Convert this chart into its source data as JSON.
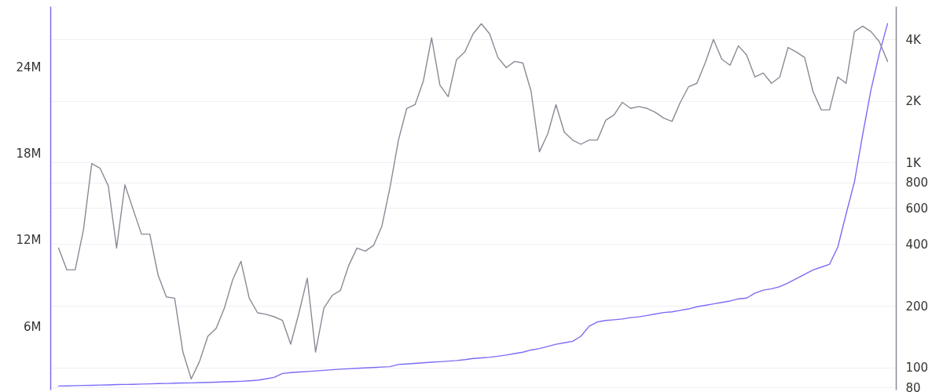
{
  "chart_data": {
    "type": "line",
    "categories": [
      null,
      null,
      null,
      null,
      null,
      null,
      null,
      null,
      null,
      null,
      null,
      null,
      null,
      null,
      null,
      null,
      null,
      null,
      null,
      null,
      null,
      null,
      null,
      null,
      null,
      null,
      null,
      null,
      null,
      null,
      null,
      null,
      null,
      null,
      null,
      null,
      null,
      null,
      null,
      null,
      null,
      null,
      null,
      null,
      null,
      null,
      null,
      null,
      null,
      null,
      null,
      null,
      null,
      null,
      null,
      null,
      null,
      null,
      null,
      null,
      null,
      null,
      null,
      null,
      null,
      null,
      null,
      null,
      null,
      null,
      null,
      null,
      null,
      null,
      null,
      null,
      null,
      null,
      null,
      null,
      null,
      null,
      null,
      null,
      null,
      null,
      null,
      null,
      null,
      null,
      null,
      null,
      null,
      null,
      null,
      null,
      null,
      null,
      null,
      null,
      null
    ],
    "series": [
      {
        "color": "#7b6cf6",
        "axis": "y",
        "values": [
          1.85,
          1.86,
          1.88,
          1.89,
          1.9,
          1.92,
          1.93,
          1.95,
          1.96,
          1.97,
          1.99,
          2.0,
          2.02,
          2.03,
          2.05,
          2.06,
          2.07,
          2.09,
          2.1,
          2.12,
          2.14,
          2.16,
          2.18,
          2.21,
          2.25,
          2.35,
          2.45,
          2.72,
          2.78,
          2.82,
          2.86,
          2.9,
          2.94,
          2.98,
          3.02,
          3.05,
          3.08,
          3.11,
          3.14,
          3.17,
          3.2,
          3.35,
          3.38,
          3.42,
          3.46,
          3.5,
          3.54,
          3.58,
          3.62,
          3.68,
          3.76,
          3.8,
          3.85,
          3.92,
          4.0,
          4.1,
          4.2,
          4.35,
          4.45,
          4.6,
          4.75,
          4.85,
          4.95,
          5.3,
          6.0,
          6.3,
          6.4,
          6.45,
          6.5,
          6.6,
          6.65,
          6.75,
          6.85,
          6.95,
          7.0,
          7.1,
          7.2,
          7.35,
          7.45,
          7.55,
          7.65,
          7.75,
          7.9,
          7.95,
          8.3,
          8.5,
          8.6,
          8.75,
          9.0,
          9.3,
          9.6,
          9.9,
          10.1,
          10.3,
          11.5,
          13.8,
          16.0,
          19.3,
          22.4,
          24.9,
          27.0
        ]
      },
      {
        "color": "#8a8a96",
        "axis": "y2",
        "values": [
          383,
          300,
          300,
          470,
          990,
          940,
          770,
          383,
          780,
          590,
          448,
          448,
          283,
          221,
          218,
          119,
          88,
          107,
          142,
          155,
          195,
          268,
          330,
          218,
          185,
          182,
          177,
          170,
          130,
          185,
          273,
          119,
          195,
          225,
          238,
          315,
          383,
          370,
          395,
          490,
          765,
          1290,
          1840,
          1920,
          2500,
          4070,
          2390,
          2100,
          3180,
          3470,
          4250,
          4770,
          4250,
          3260,
          2910,
          3120,
          3070,
          2230,
          1130,
          1380,
          1920,
          1410,
          1290,
          1230,
          1290,
          1290,
          1610,
          1710,
          1970,
          1840,
          1880,
          1840,
          1760,
          1650,
          1590,
          1970,
          2350,
          2440,
          3070,
          4000,
          3200,
          2990,
          3720,
          3350,
          2620,
          2740,
          2440,
          2620,
          3650,
          3470,
          3260,
          2230,
          1810,
          1810,
          2620,
          2440,
          4360,
          4640,
          4360,
          3900,
          3120
        ]
      }
    ],
    "ylim": [
      1.6,
      28.2
    ],
    "yticks": [
      {
        "value": 6,
        "label": "6M"
      },
      {
        "value": 12,
        "label": "12M"
      },
      {
        "value": 18,
        "label": "18M"
      },
      {
        "value": 24,
        "label": "24M"
      }
    ],
    "y2lim": [
      78,
      5800
    ],
    "y2ticks": [
      80,
      100,
      200,
      400,
      600,
      800,
      {
        "value": 1000,
        "label": "1K"
      },
      {
        "value": 2000,
        "label": "2K"
      },
      {
        "value": 4000,
        "label": "4K"
      }
    ],
    "log": "y2",
    "grid": "y2",
    "marker": "none",
    "line_style": "solid"
  }
}
